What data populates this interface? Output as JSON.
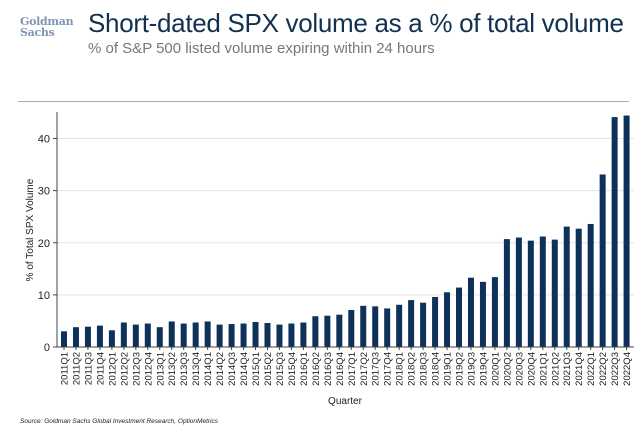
{
  "header": {
    "logo_text": "Goldman Sachs",
    "title": "Short-dated SPX volume as a % of total volume",
    "subtitle": "% of S&P 500 listed volume expiring within 24 hours"
  },
  "footer": {
    "source": "Source: Goldman Sachs Global Investment Research, OptionMetrics"
  },
  "chart_data": {
    "type": "bar",
    "title": "",
    "xlabel": "Quarter",
    "ylabel": "% of Total SPX Volume",
    "ylim": [
      0,
      45
    ],
    "yticks": [
      0,
      10,
      20,
      30,
      40
    ],
    "grid": "horizontal",
    "bar_color": "#0d3158",
    "categories": [
      "2011Q1",
      "2011Q2",
      "2011Q3",
      "2011Q4",
      "2012Q1",
      "2012Q2",
      "2012Q3",
      "2012Q4",
      "2013Q1",
      "2013Q2",
      "2013Q3",
      "2013Q4",
      "2014Q1",
      "2014Q2",
      "2014Q3",
      "2014Q4",
      "2015Q1",
      "2015Q2",
      "2015Q3",
      "2015Q4",
      "2016Q1",
      "2016Q2",
      "2016Q3",
      "2016Q4",
      "2017Q1",
      "2017Q2",
      "2017Q3",
      "2017Q4",
      "2018Q1",
      "2018Q2",
      "2018Q3",
      "2018Q4",
      "2019Q1",
      "2019Q2",
      "2019Q3",
      "2019Q4",
      "2020Q1",
      "2020Q2",
      "2020Q3",
      "2020Q4",
      "2021Q1",
      "2021Q2",
      "2021Q3",
      "2021Q4",
      "2022Q1",
      "2022Q2",
      "2022Q3",
      "2022Q4"
    ],
    "values": [
      3.0,
      3.8,
      3.9,
      4.1,
      3.2,
      4.7,
      4.3,
      4.5,
      3.8,
      4.9,
      4.5,
      4.7,
      4.9,
      4.3,
      4.4,
      4.5,
      4.8,
      4.6,
      4.3,
      4.5,
      4.7,
      5.9,
      6.0,
      6.2,
      7.1,
      7.9,
      7.8,
      7.4,
      8.1,
      9.0,
      8.5,
      9.6,
      10.5,
      11.4,
      13.3,
      12.5,
      13.4,
      20.7,
      21.0,
      20.4,
      21.2,
      20.6,
      23.1,
      22.7,
      23.6,
      33.1,
      44.1,
      44.4
    ]
  }
}
